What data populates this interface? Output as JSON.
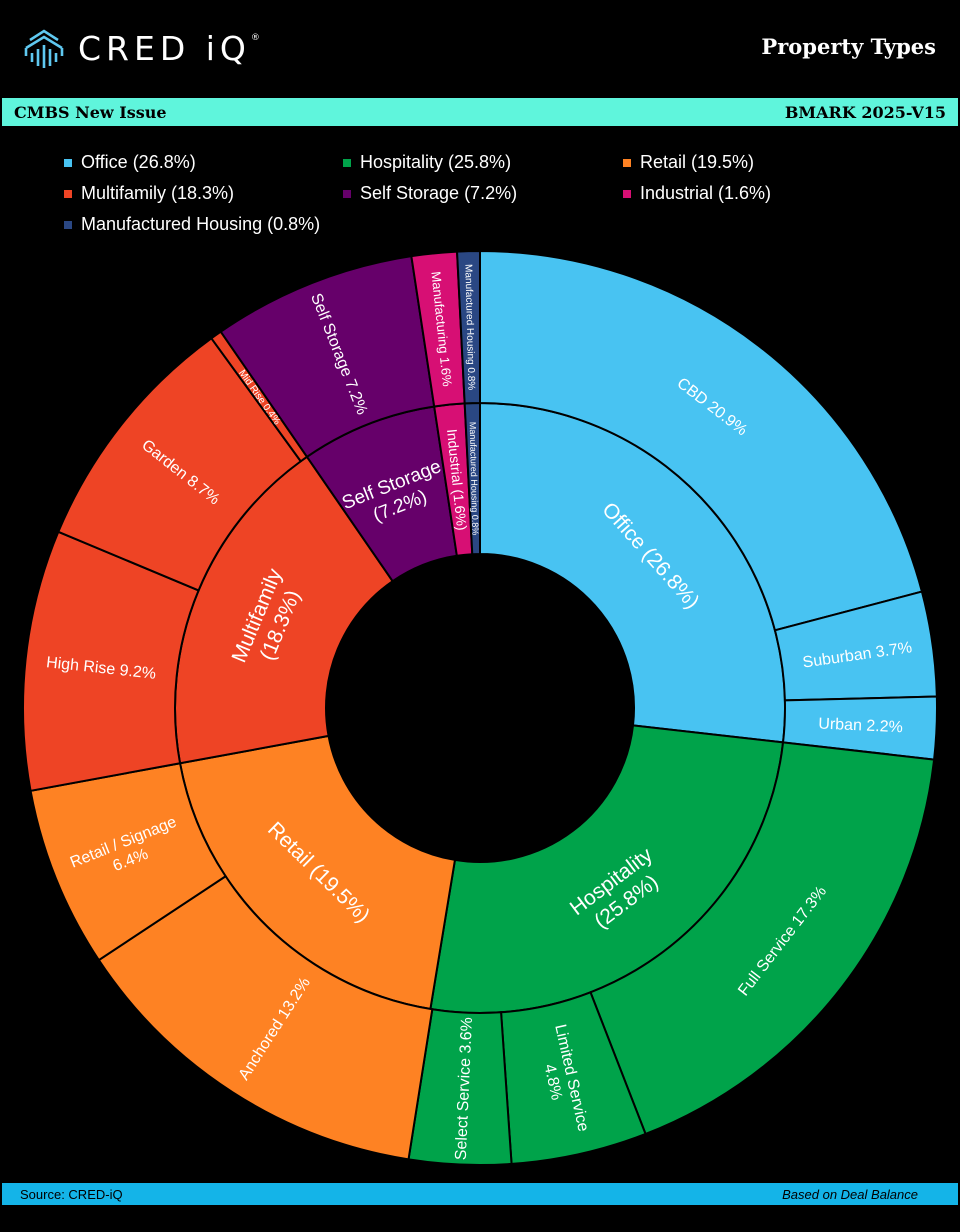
{
  "header": {
    "logo_text": "CRED iQ",
    "logo_mark": "®",
    "title": "Property Types"
  },
  "subheader": {
    "left": "CMBS New Issue",
    "right": "BMARK 2025-V15"
  },
  "footer": {
    "source": "Source:  CRED-iQ",
    "basis": "Based on Deal Balance"
  },
  "legend": [
    {
      "label": "Office (26.8%)",
      "color": "#48c3f2"
    },
    {
      "label": "Hospitality (25.8%)",
      "color": "#00a34a"
    },
    {
      "label": "Retail (19.5%)",
      "color": "#fe8223"
    },
    {
      "label": "Multifamily (18.3%)",
      "color": "#ee4425"
    },
    {
      "label": "Self Storage (7.2%)",
      "color": "#66006a"
    },
    {
      "label": "Industrial (1.6%)",
      "color": "#d70f74"
    },
    {
      "label": "Manufactured Housing (0.8%)",
      "color": "#2a4783"
    }
  ],
  "chart_data": {
    "type": "sunburst",
    "title": "Property Types",
    "inner": [
      {
        "name": "Office",
        "value": 26.8,
        "color": "#48c3f2",
        "label_lines": [
          "Office (26.8%)"
        ]
      },
      {
        "name": "Hospitality",
        "value": 25.8,
        "color": "#00a34a",
        "label_lines": [
          "Hospitality",
          "(25.8%)"
        ]
      },
      {
        "name": "Retail",
        "value": 19.5,
        "color": "#fe8223",
        "label_lines": [
          "Retail (19.5%)"
        ]
      },
      {
        "name": "Multifamily",
        "value": 18.3,
        "color": "#ee4425",
        "label_lines": [
          "Multifamily",
          "(18.3%)"
        ]
      },
      {
        "name": "Self Storage",
        "value": 7.2,
        "color": "#66006a",
        "label_lines": [
          "Self Storage",
          "(7.2%)"
        ]
      },
      {
        "name": "Industrial",
        "value": 1.6,
        "color": "#d70f74",
        "label_lines": [
          "Industrial (1.6%)"
        ]
      },
      {
        "name": "Manufactured Housing",
        "value": 0.8,
        "color": "#2a4783",
        "label_lines": [
          "Manufactured Housing 0.8%"
        ]
      }
    ],
    "outer": [
      {
        "name": "CBD",
        "parent": "Office",
        "value": 20.9,
        "color": "#48c3f2",
        "label_lines": [
          "CBD 20.9%"
        ]
      },
      {
        "name": "Suburban",
        "parent": "Office",
        "value": 3.7,
        "color": "#48c3f2",
        "label_lines": [
          "Suburban 3.7%"
        ]
      },
      {
        "name": "Urban",
        "parent": "Office",
        "value": 2.2,
        "color": "#48c3f2",
        "label_lines": [
          "Urban 2.2%"
        ]
      },
      {
        "name": "Full Service",
        "parent": "Hospitality",
        "value": 17.3,
        "color": "#00a34a",
        "label_lines": [
          "Full Service 17.3%"
        ]
      },
      {
        "name": "Limited Service",
        "parent": "Hospitality",
        "value": 4.8,
        "color": "#00a34a",
        "label_lines": [
          "Limited Service",
          "4.8%"
        ]
      },
      {
        "name": "Select Service",
        "parent": "Hospitality",
        "value": 3.6,
        "color": "#00a34a",
        "label_lines": [
          "Select Service 3.6%"
        ]
      },
      {
        "name": "Anchored",
        "parent": "Retail",
        "value": 13.2,
        "color": "#fe8223",
        "label_lines": [
          "Anchored 13.2%"
        ]
      },
      {
        "name": "Retail / Signage",
        "parent": "Retail",
        "value": 6.4,
        "color": "#fe8223",
        "label_lines": [
          "Retail / Signage",
          "6.4%"
        ]
      },
      {
        "name": "High Rise",
        "parent": "Multifamily",
        "value": 9.2,
        "color": "#ee4425",
        "label_lines": [
          "High Rise 9.2%"
        ]
      },
      {
        "name": "Garden",
        "parent": "Multifamily",
        "value": 8.7,
        "color": "#ee4425",
        "label_lines": [
          "Garden 8.7%"
        ]
      },
      {
        "name": "Mid Rise",
        "parent": "Multifamily",
        "value": 0.4,
        "color": "#ee4425",
        "label_lines": [
          "Mid Rise 0.4%"
        ]
      },
      {
        "name": "Self Storage",
        "parent": "Self Storage",
        "value": 7.2,
        "color": "#66006a",
        "label_lines": [
          "Self Storage 7.2%"
        ]
      },
      {
        "name": "Manufacturing",
        "parent": "Industrial",
        "value": 1.6,
        "color": "#d70f74",
        "label_lines": [
          "Manufacturing 1.6%"
        ]
      },
      {
        "name": "Manufactured Housing",
        "parent": "Manufactured Housing",
        "value": 0.8,
        "color": "#2a4783",
        "label_lines": [
          "Manufactured Housing 0.8%"
        ]
      }
    ]
  }
}
